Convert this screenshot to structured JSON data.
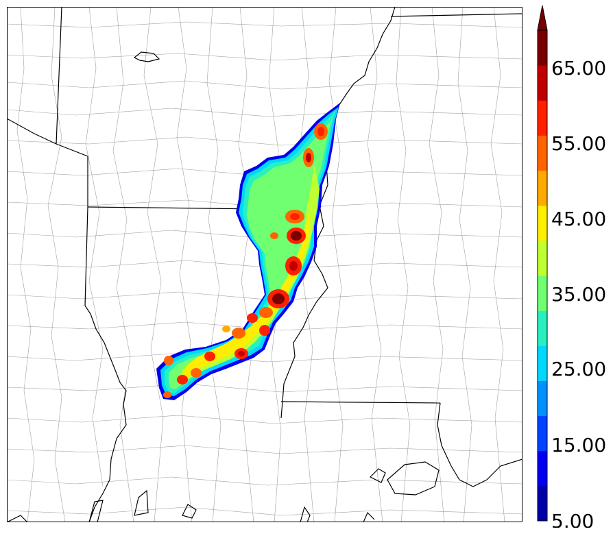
{
  "map": {
    "background": "#ffffff",
    "state_border_color": "#000000",
    "county_border_color": "#9a9a9a"
  },
  "colorbar": {
    "labels": [
      "5.00",
      "15.00",
      "25.00",
      "35.00",
      "45.00",
      "55.00",
      "65.00"
    ],
    "extend": "max",
    "bins": [
      {
        "from": 5,
        "color": "#0000a8"
      },
      {
        "from": 10,
        "color": "#0000f0"
      },
      {
        "from": 15,
        "color": "#0044ff"
      },
      {
        "from": 20,
        "color": "#0090ff"
      },
      {
        "from": 25,
        "color": "#00d8ff"
      },
      {
        "from": 30,
        "color": "#28f0c0"
      },
      {
        "from": 35,
        "color": "#70ff70"
      },
      {
        "from": 40,
        "color": "#c0ff30"
      },
      {
        "from": 45,
        "color": "#ffee00"
      },
      {
        "from": 50,
        "color": "#ffaa00"
      },
      {
        "from": 55,
        "color": "#ff6400"
      },
      {
        "from": 60,
        "color": "#ff2000"
      },
      {
        "from": 65,
        "color": "#c00000"
      },
      {
        "from": 70,
        "color": "#780000"
      }
    ]
  }
}
